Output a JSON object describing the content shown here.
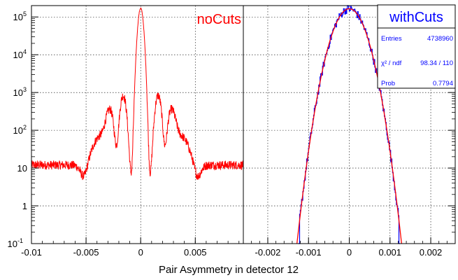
{
  "colors": {
    "red": "#ff0000",
    "blue": "#0000ff",
    "axis": "#000000",
    "grid": "#000000"
  },
  "xlabel": "Pair Asymmetry in detector 12",
  "chart_data": [
    {
      "type": "line",
      "name": "noCuts",
      "title": "noCuts",
      "xlim": [
        -0.01,
        0.0094
      ],
      "ylim": [
        0.1,
        200000
      ],
      "yscale": "log",
      "grid": true,
      "x_ticks": [
        "-0.01",
        "-0.005",
        "0",
        "0.005"
      ],
      "x_tick_values": [
        -0.01,
        -0.005,
        0,
        0.005
      ],
      "y_ticks": [
        {
          "value": 0.1,
          "base": "10",
          "exp": "-1"
        },
        {
          "value": 1,
          "base": "1",
          "exp": ""
        },
        {
          "value": 10,
          "base": "10",
          "exp": ""
        },
        {
          "value": 100,
          "base": "10",
          "exp": "2"
        },
        {
          "value": 1000,
          "base": "10",
          "exp": "3"
        },
        {
          "value": 10000,
          "base": "10",
          "exp": "4"
        },
        {
          "value": 100000,
          "base": "10",
          "exp": "5"
        }
      ],
      "peaks": [
        {
          "x": 0,
          "y": 170000,
          "w": 0.00018
        },
        {
          "x": -0.0028,
          "y": 330,
          "w": 0.0003
        },
        {
          "x": 0.0028,
          "y": 330,
          "w": 0.0003
        },
        {
          "x": -0.0016,
          "y": 820,
          "w": 0.00022
        },
        {
          "x": 0.0016,
          "y": 820,
          "w": 0.00022
        },
        {
          "x": -0.0036,
          "y": 60,
          "w": 0.0006
        },
        {
          "x": 0.0036,
          "y": 60,
          "w": 0.0006
        }
      ],
      "baseline": 12,
      "dips": [
        {
          "x": -0.0052,
          "y": 6,
          "w": 0.00035
        },
        {
          "x": 0.0052,
          "y": 6,
          "w": 0.00035
        },
        {
          "x": -0.0023,
          "y": 90,
          "w": 0.0002
        },
        {
          "x": 0.0023,
          "y": 90,
          "w": 0.0002
        },
        {
          "x": -0.0009,
          "y": 110,
          "w": 0.0002
        },
        {
          "x": 0.0009,
          "y": 110,
          "w": 0.0002
        }
      ]
    },
    {
      "type": "line",
      "name": "withCuts",
      "title": "withCuts",
      "xlim": [
        -0.0026,
        0.0026
      ],
      "ylim": [
        0.1,
        200000
      ],
      "yscale": "log",
      "grid": true,
      "x_ticks": [
        "-0.002",
        "-0.001",
        "0",
        "0.001",
        "0.002"
      ],
      "x_tick_values": [
        -0.002,
        -0.001,
        0,
        0.001,
        0.002
      ],
      "gauss": {
        "amplitude": 165000,
        "mean": 0,
        "sigma": 0.00024
      },
      "hist_range": [
        -0.00125,
        0.00125
      ],
      "stats": {
        "title": "withCuts",
        "rows": [
          {
            "label": "Entries",
            "value": "4738960"
          },
          {
            "label": "χ² / ndf",
            "value": "98.34 / 110"
          },
          {
            "label": "Prob",
            "value": "0.7794"
          }
        ]
      }
    }
  ]
}
